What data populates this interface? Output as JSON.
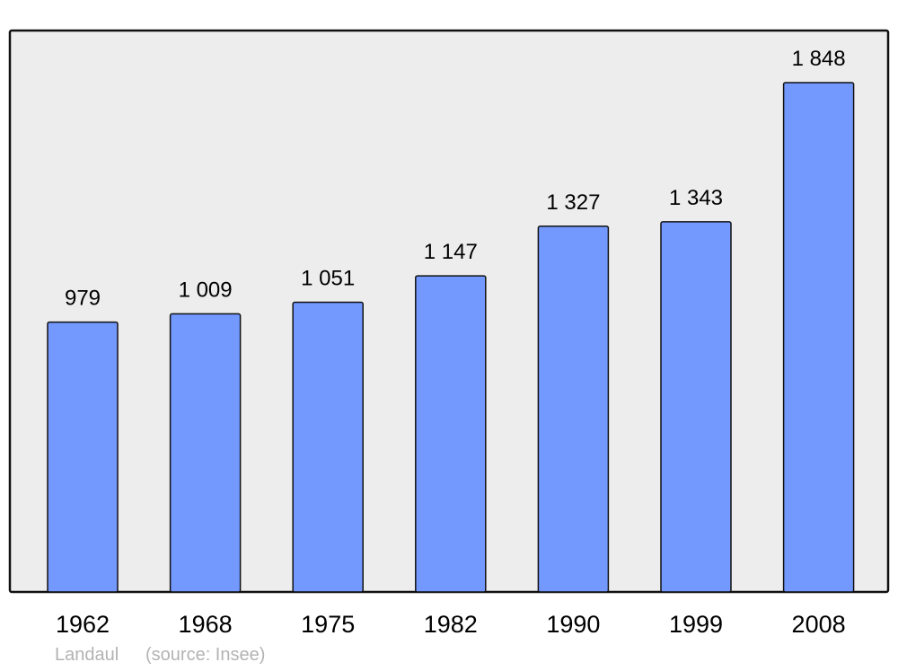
{
  "chart_data": {
    "type": "bar",
    "categories": [
      "1962",
      "1968",
      "1975",
      "1982",
      "1990",
      "1999",
      "2008"
    ],
    "values": [
      979,
      1009,
      1051,
      1147,
      1327,
      1343,
      1848
    ],
    "data_labels": [
      "979",
      "1 009",
      "1 051",
      "1 147",
      "1 327",
      "1 343",
      "1 848"
    ],
    "title": "",
    "xlabel": "",
    "ylabel": "",
    "ylim": [
      0,
      2037
    ],
    "grid": false,
    "bar_color": "#7399ff",
    "background_color": "#ededed"
  },
  "footer": {
    "place": "Landaul",
    "source": "(source: Insee)"
  }
}
